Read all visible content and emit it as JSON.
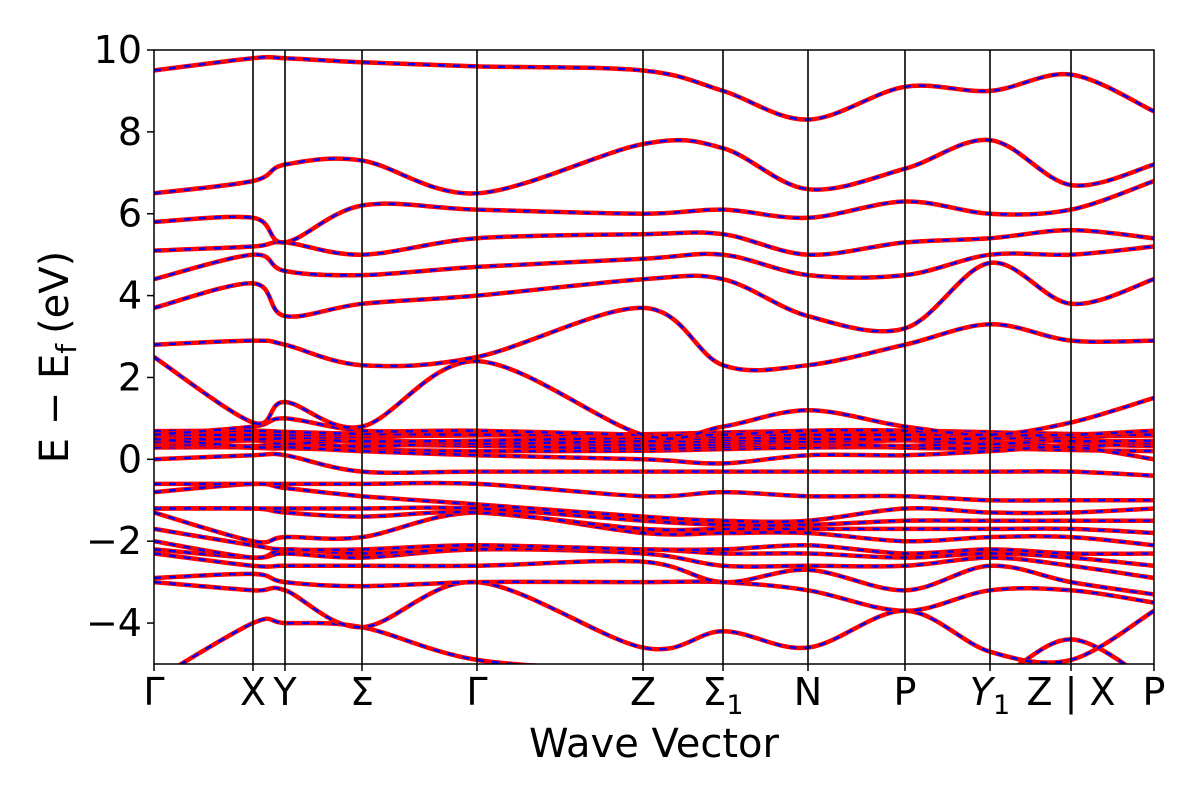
{
  "chart_data": {
    "type": "line",
    "title": "",
    "xlabel": "Wave Vector",
    "ylabel_parts": {
      "main": "E − E",
      "sub": "f",
      "unit": "(eV)"
    },
    "ylim": [
      -5,
      10
    ],
    "yticks": [
      {
        "value": 10,
        "label": "10"
      },
      {
        "value": 8,
        "label": "8"
      },
      {
        "value": 6,
        "label": "6"
      },
      {
        "value": 4,
        "label": "4"
      },
      {
        "value": 2,
        "label": "2"
      },
      {
        "value": 0,
        "label": "0"
      },
      {
        "value": -2,
        "label": "−2"
      },
      {
        "value": -4,
        "label": "−4"
      }
    ],
    "xlim": [
      0,
      1
    ],
    "kpoints": [
      {
        "pos": 0.0,
        "label": "Γ",
        "sub": ""
      },
      {
        "pos": 0.099,
        "label": "X",
        "sub": ""
      },
      {
        "pos": 0.131,
        "label": "Y",
        "sub": ""
      },
      {
        "pos": 0.208,
        "label": "Σ",
        "sub": ""
      },
      {
        "pos": 0.323,
        "label": "Γ",
        "sub": ""
      },
      {
        "pos": 0.489,
        "label": "Z",
        "sub": ""
      },
      {
        "pos": 0.569,
        "label": "Σ",
        "sub": "1"
      },
      {
        "pos": 0.654,
        "label": "N",
        "sub": ""
      },
      {
        "pos": 0.751,
        "label": "P",
        "sub": ""
      },
      {
        "pos": 0.836,
        "label": "Y",
        "sub": "1",
        "italic": true
      },
      {
        "pos": 0.917,
        "label": "Z | X",
        "sub": ""
      },
      {
        "pos": 1.0,
        "label": "P",
        "sub": ""
      }
    ],
    "series_styles": [
      {
        "color": "#ff0000",
        "style": "solid"
      },
      {
        "color": "#0000ff",
        "style": "dashed"
      }
    ],
    "flat_band_cluster": {
      "min": 0.25,
      "max": 0.65
    },
    "bands": [
      [
        -5.4,
        -4.0,
        -4.0,
        -4.1,
        -4.9,
        -5.2,
        -5.6,
        -5.6,
        -5.6,
        -5.4,
        -4.4,
        -5.5
      ],
      [
        -3.0,
        -3.2,
        -3.2,
        -4.1,
        -3.0,
        -4.6,
        -4.2,
        -4.6,
        -3.7,
        -4.7,
        -4.9,
        -3.7
      ],
      [
        -2.9,
        -2.8,
        -3.0,
        -3.1,
        -3.0,
        -3.0,
        -3.0,
        -3.2,
        -3.7,
        -3.2,
        -3.2,
        -3.5
      ],
      [
        -2.3,
        -2.6,
        -2.6,
        -2.6,
        -2.6,
        -2.5,
        -3.0,
        -2.7,
        -3.2,
        -2.6,
        -3.0,
        -3.3
      ],
      [
        -2.2,
        -2.4,
        -2.3,
        -2.4,
        -2.2,
        -2.3,
        -2.6,
        -2.6,
        -2.6,
        -2.4,
        -2.6,
        -2.9
      ],
      [
        -2.0,
        -2.4,
        -2.2,
        -2.3,
        -2.2,
        -2.2,
        -2.3,
        -2.3,
        -2.4,
        -2.3,
        -2.4,
        -2.6
      ],
      [
        -1.7,
        -2.1,
        -2.2,
        -2.2,
        -2.1,
        -2.2,
        -2.2,
        -2.1,
        -2.3,
        -2.2,
        -2.3,
        -2.3
      ],
      [
        -1.3,
        -2.0,
        -1.9,
        -1.9,
        -1.3,
        -1.8,
        -1.8,
        -1.8,
        -2.0,
        -1.9,
        -1.9,
        -2.1
      ],
      [
        -1.2,
        -1.2,
        -1.3,
        -1.4,
        -1.3,
        -1.7,
        -1.7,
        -1.7,
        -1.7,
        -1.7,
        -1.7,
        -1.8
      ],
      [
        -1.2,
        -1.2,
        -1.2,
        -1.2,
        -1.2,
        -1.5,
        -1.6,
        -1.6,
        -1.5,
        -1.5,
        -1.5,
        -1.5
      ],
      [
        -0.8,
        -0.6,
        -0.7,
        -0.9,
        -1.1,
        -1.4,
        -1.5,
        -1.5,
        -1.2,
        -1.3,
        -1.3,
        -1.2
      ],
      [
        -0.6,
        -0.6,
        -0.6,
        -0.6,
        -0.6,
        -0.9,
        -0.8,
        -0.9,
        -0.9,
        -1.0,
        -1.0,
        -1.0
      ],
      [
        0.0,
        0.1,
        0.1,
        -0.3,
        -0.3,
        -0.3,
        -0.3,
        -0.3,
        -0.3,
        -0.3,
        -0.3,
        -0.4
      ],
      [
        0.5,
        0.3,
        0.3,
        0.2,
        0.1,
        0.0,
        -0.1,
        0.1,
        0.1,
        0.2,
        0.3,
        0.0
      ],
      [
        0.6,
        0.8,
        1.0,
        0.7,
        0.7,
        0.6,
        0.6,
        0.7,
        0.7,
        0.6,
        0.6,
        0.7
      ],
      [
        2.5,
        0.9,
        1.4,
        0.8,
        2.4,
        0.6,
        0.8,
        1.2,
        0.8,
        0.6,
        0.9,
        1.5
      ],
      [
        2.8,
        2.9,
        2.8,
        2.3,
        2.5,
        3.7,
        2.3,
        2.3,
        2.8,
        3.3,
        2.9,
        2.9
      ],
      [
        3.7,
        4.3,
        3.5,
        3.8,
        4.0,
        4.4,
        4.4,
        3.5,
        3.2,
        4.8,
        3.8,
        4.4
      ],
      [
        4.4,
        5.0,
        4.6,
        4.5,
        4.7,
        4.9,
        5.0,
        4.5,
        4.5,
        5.0,
        5.0,
        5.2
      ],
      [
        5.1,
        5.2,
        5.3,
        5.0,
        5.4,
        5.5,
        5.5,
        5.0,
        5.3,
        5.4,
        5.6,
        5.4
      ],
      [
        5.8,
        5.9,
        5.3,
        6.2,
        6.1,
        6.0,
        6.1,
        5.9,
        6.3,
        6.0,
        6.1,
        6.8
      ],
      [
        6.5,
        6.8,
        7.2,
        7.3,
        6.5,
        7.7,
        7.6,
        6.6,
        7.1,
        7.8,
        6.7,
        7.2
      ],
      [
        9.5,
        9.8,
        9.8,
        9.7,
        9.6,
        9.5,
        9.0,
        8.3,
        9.1,
        9.0,
        9.4,
        8.5
      ]
    ]
  }
}
